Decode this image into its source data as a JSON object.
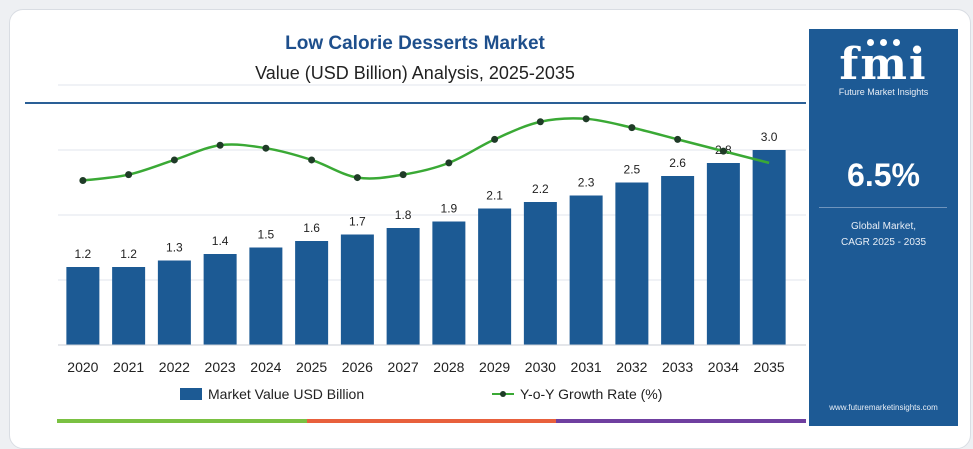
{
  "chart_data": {
    "type": "bar",
    "title": "Low Calorie Desserts Market",
    "subtitle": "Value (USD Billion) Analysis, 2025-2035",
    "categories": [
      "2020",
      "2021",
      "2022",
      "2023",
      "2024",
      "2025",
      "2026",
      "2027",
      "2028",
      "2029",
      "2030",
      "2031",
      "2032",
      "2033",
      "2034",
      "2035"
    ],
    "series": [
      {
        "name": "Market Value USD Billion",
        "type": "bar",
        "values": [
          1.2,
          1.2,
          1.3,
          1.4,
          1.5,
          1.6,
          1.7,
          1.8,
          1.9,
          2.1,
          2.2,
          2.3,
          2.5,
          2.6,
          2.8,
          3.0
        ],
        "labels": [
          "1.2",
          "1.2",
          "1.3",
          "1.4",
          "1.5",
          "1.6",
          "1.7",
          "1.8",
          "1.9",
          "2.1",
          "2.2",
          "2.3",
          "2.5",
          "2.6",
          "2.8",
          "3.0"
        ]
      },
      {
        "name": "Y-o-Y Growth Rate (%)",
        "type": "line",
        "values": [
          5.6,
          5.8,
          6.3,
          6.8,
          6.7,
          6.3,
          5.7,
          5.8,
          6.2,
          7.0,
          7.6,
          7.7,
          7.4,
          7.0,
          6.6,
          6.2
        ]
      }
    ],
    "ylim": [
      0,
      3.0
    ],
    "growth_range": [
      0,
      8
    ],
    "grid": true,
    "legend_position": "bottom",
    "colors": {
      "bar": "#1c5a94",
      "line": "#3aa935",
      "marker": "#1f3b27",
      "grid": "#e2e6ec"
    }
  },
  "panel": {
    "logo": "fmi",
    "brand": "Future Market Insights",
    "cagr_value": "6.5%",
    "cagr_label_line1": "Global Market,",
    "cagr_label_line2": "CAGR 2025 - 2035",
    "website": "www.futuremarketinsights.com",
    "background": "#1d5a95"
  },
  "stripe_colors": [
    "#7ac142",
    "#e8603c",
    "#6f3fa0"
  ]
}
